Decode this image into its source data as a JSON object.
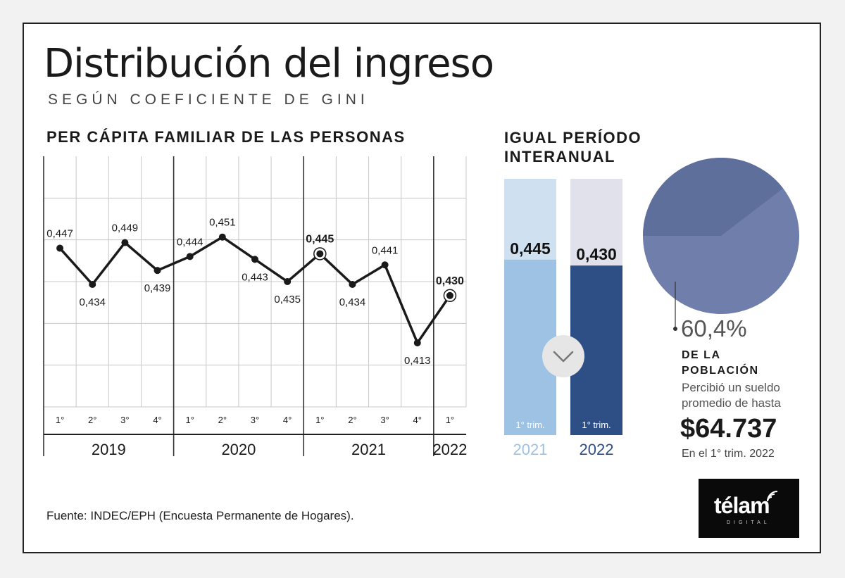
{
  "header": {
    "title": "Distribución del ingreso",
    "subtitle": "SEGÚN COEFICIENTE DE GINI"
  },
  "colors": {
    "line": "#1a1a1a",
    "bar_2021_bg": "#cfe1f0",
    "bar_2021_fill": "#9ec2e3",
    "bar_2022_bg": "#e0e1ea",
    "bar_2022_fill": "#2e4f86",
    "pie_main": "#6f7eaa",
    "pie_slice": "#5f6f9c"
  },
  "chart_data": [
    {
      "type": "line",
      "title": "PER CÁPITA FAMILIAR DE LAS PERSONAS",
      "quarter_labels": [
        "1°",
        "2°",
        "3°",
        "4°",
        "1°",
        "2°",
        "3°",
        "4°",
        "1°",
        "2°",
        "3°",
        "4°",
        "1°"
      ],
      "year_labels": [
        "2019",
        "2020",
        "2021",
        "2022"
      ],
      "values": [
        0.447,
        0.434,
        0.449,
        0.439,
        0.444,
        0.451,
        0.443,
        0.435,
        0.445,
        0.434,
        0.441,
        0.413,
        0.43
      ],
      "value_labels": [
        "0,447",
        "0,434",
        "0,449",
        "0,439",
        "0,444",
        "0,451",
        "0,443",
        "0,435",
        "0,445",
        "0,434",
        "0,441",
        "0,413",
        "0,430"
      ],
      "highlighted": [
        8,
        12
      ],
      "ylim": [
        0.39,
        0.48
      ],
      "xlabel": "",
      "ylabel": ""
    },
    {
      "type": "bar",
      "title": "IGUAL PERÍODO INTERANUAL",
      "categories": [
        "2021",
        "2022"
      ],
      "values": [
        0.445,
        0.43
      ],
      "value_labels": [
        "0,445",
        "0,430"
      ],
      "sublabels": [
        "1° trim.",
        "1° trim."
      ],
      "ylim": [
        0,
        0.65
      ]
    },
    {
      "type": "pie",
      "values": [
        60.4,
        39.6
      ],
      "labels": [
        "60,4%",
        ""
      ]
    }
  ],
  "side": {
    "pct_label": "60,4%",
    "pop_line1": "DE LA",
    "pop_line2": "POBLACIÓN",
    "desc_line1": "Percibió un sueldo",
    "desc_line2": "promedio de hasta",
    "amount": "$64.737",
    "period": "En el 1° trim. 2022"
  },
  "footer": {
    "source": "Fuente: INDEC/EPH (Encuesta Permanente de Hogares)."
  },
  "logo": {
    "name": "télam",
    "sub": "DIGITAL"
  }
}
